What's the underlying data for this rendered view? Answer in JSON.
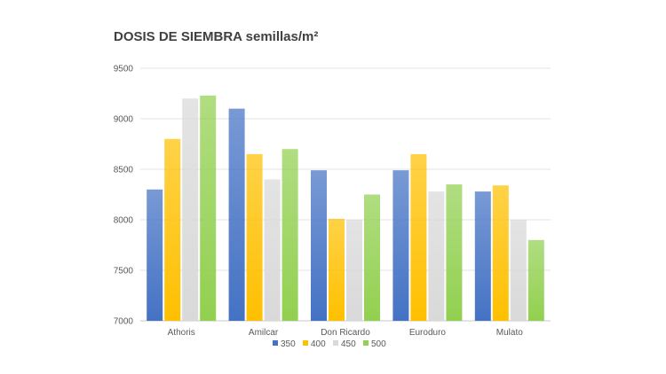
{
  "chart_data": {
    "type": "bar",
    "title": "DOSIS DE SIEMBRA semillas/m²",
    "xlabel": "",
    "ylabel": "",
    "categories": [
      "Athoris",
      "Amilcar",
      "Don Ricardo",
      "Euroduro",
      "Mulato"
    ],
    "series": [
      {
        "name": "350",
        "color": "#4472C4",
        "values": [
          8300,
          9100,
          8490,
          8490,
          8280
        ]
      },
      {
        "name": "400",
        "color": "#FFC000",
        "values": [
          8800,
          8650,
          8010,
          8650,
          8340
        ]
      },
      {
        "name": "450",
        "color": "#D9D9D9",
        "values": [
          9200,
          8400,
          8000,
          8280,
          8000
        ]
      },
      {
        "name": "500",
        "color": "#92D050",
        "values": [
          9230,
          8700,
          8250,
          8350,
          7800
        ]
      }
    ],
    "ylim": [
      7000,
      9500
    ],
    "yticks": [
      7000,
      7500,
      8000,
      8500,
      9000,
      9500
    ],
    "grid": true,
    "legend": "bottom"
  }
}
